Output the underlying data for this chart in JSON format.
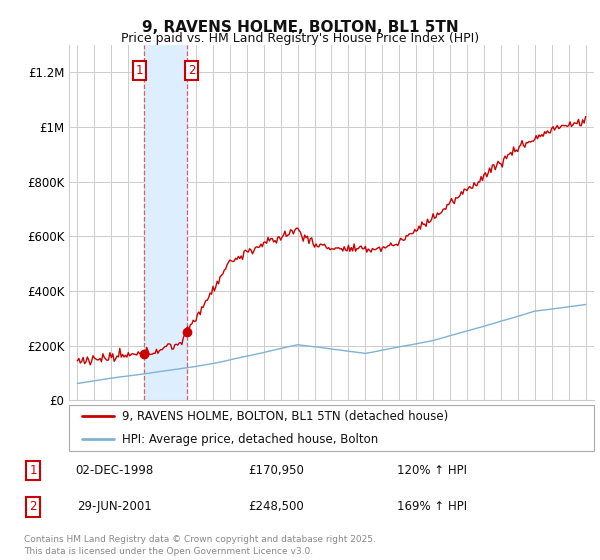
{
  "title": "9, RAVENS HOLME, BOLTON, BL1 5TN",
  "subtitle": "Price paid vs. HM Land Registry's House Price Index (HPI)",
  "sale1_date_label": "02-DEC-1998",
  "sale1_price": 170950,
  "sale1_price_label": "£170,950",
  "sale1_hpi_label": "120% ↑ HPI",
  "sale2_date_label": "29-JUN-2001",
  "sale2_price": 248500,
  "sale2_price_label": "£248,500",
  "sale2_hpi_label": "169% ↑ HPI",
  "sale1_x": 1998.92,
  "sale2_x": 2001.49,
  "legend_line1": "9, RAVENS HOLME, BOLTON, BL1 5TN (detached house)",
  "legend_line2": "HPI: Average price, detached house, Bolton",
  "footer": "Contains HM Land Registry data © Crown copyright and database right 2025.\nThis data is licensed under the Open Government Licence v3.0.",
  "red_color": "#cc0000",
  "blue_color": "#7fb3d3",
  "shade_color": "#ddeeff",
  "background_color": "#ffffff",
  "grid_color": "#cccccc",
  "ylim": [
    0,
    1300000
  ],
  "xlim": [
    1994.5,
    2025.5
  ],
  "yticks": [
    0,
    200000,
    400000,
    600000,
    800000,
    1000000,
    1200000
  ],
  "ytick_labels": [
    "£0",
    "£200K",
    "£400K",
    "£600K",
    "£800K",
    "£1M",
    "£1.2M"
  ]
}
